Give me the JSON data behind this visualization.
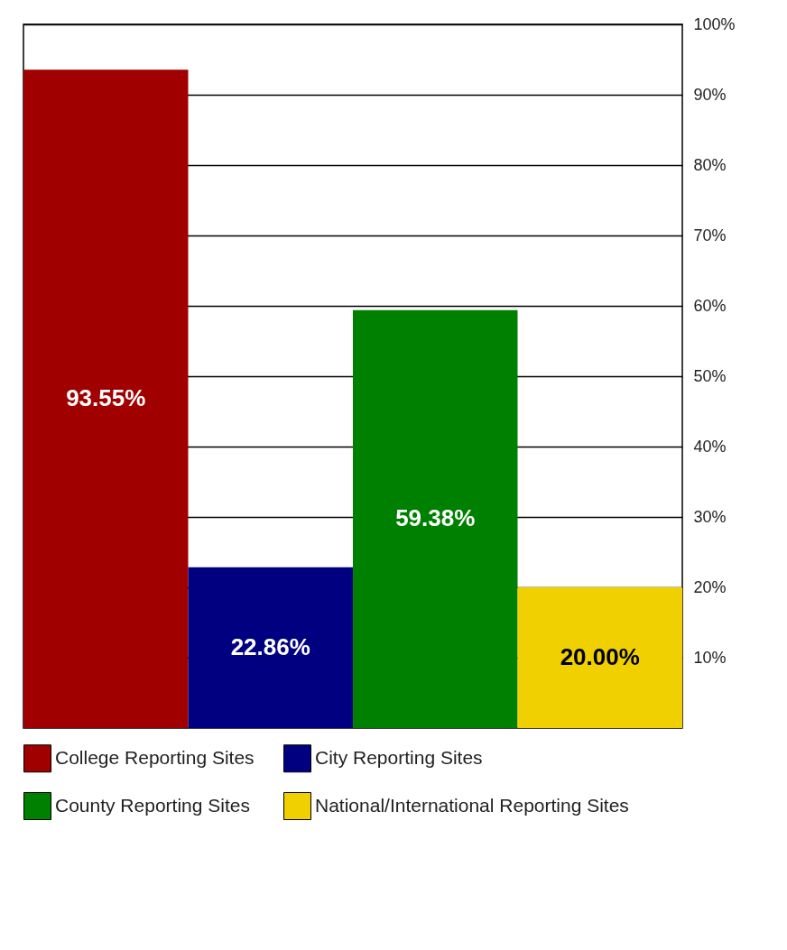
{
  "chart_data": {
    "type": "bar",
    "categories": [
      null,
      null,
      null,
      null
    ],
    "series": [
      {
        "name": "College Reporting Sites",
        "color": "#a00000",
        "values": [
          93.55,
          null,
          null,
          null
        ],
        "value_labels": [
          "93.55%",
          null,
          null,
          null
        ]
      },
      {
        "name": "City Reporting Sites",
        "color": "#000080",
        "values": [
          null,
          22.86,
          null,
          null
        ],
        "value_labels": [
          null,
          "22.86%",
          null,
          null
        ]
      },
      {
        "name": "County Reporting Sites",
        "color": "#008000",
        "values": [
          null,
          null,
          59.38,
          null
        ],
        "value_labels": [
          null,
          null,
          "59.38%",
          null
        ]
      },
      {
        "name": "National/International Reporting Sites",
        "color": "#f0d000",
        "values": [
          null,
          null,
          null,
          20.0
        ],
        "value_labels": [
          null,
          null,
          null,
          "20.00%"
        ]
      }
    ],
    "ylim": [
      0,
      100
    ],
    "yticks": [
      {
        "value": 10,
        "label": "10%"
      },
      {
        "value": 20,
        "label": "20%"
      },
      {
        "value": 30,
        "label": "30%"
      },
      {
        "value": 40,
        "label": "40%"
      },
      {
        "value": 50,
        "label": "50%"
      },
      {
        "value": 60,
        "label": "60%"
      },
      {
        "value": 70,
        "label": "70%"
      },
      {
        "value": 80,
        "label": "80%"
      },
      {
        "value": 90,
        "label": "90%"
      },
      {
        "value": 100,
        "label": "100%"
      }
    ],
    "grid": "y",
    "legend": "bottom",
    "tick_labels": "y"
  }
}
